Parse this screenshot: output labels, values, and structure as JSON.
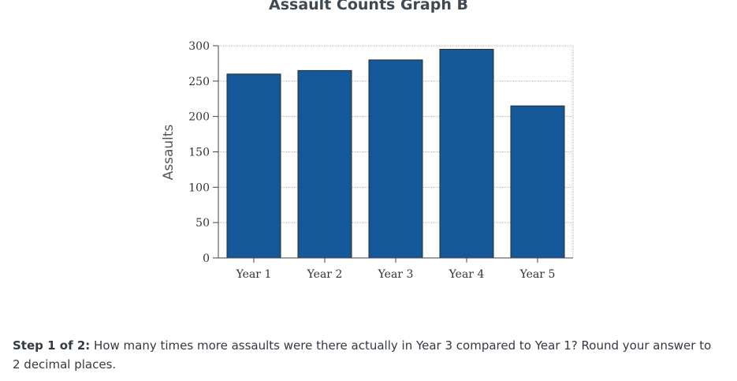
{
  "chart_data": {
    "type": "bar",
    "title": "Assault Counts Graph B",
    "ylabel": "Assaults",
    "xlabel": "",
    "categories": [
      "Year 1",
      "Year 2",
      "Year 3",
      "Year 4",
      "Year 5"
    ],
    "values": [
      260,
      265,
      280,
      295,
      215
    ],
    "ylim": [
      0,
      300
    ],
    "yticks": [
      0,
      50,
      100,
      150,
      200,
      250,
      300
    ],
    "grid": true,
    "bar_color": "#14589a"
  },
  "question": {
    "step_label": "Step 1 of 2:",
    "text": "How many times more assaults were there actually in Year 3 compared to Year 1? Round your answer to 2 decimal places."
  }
}
